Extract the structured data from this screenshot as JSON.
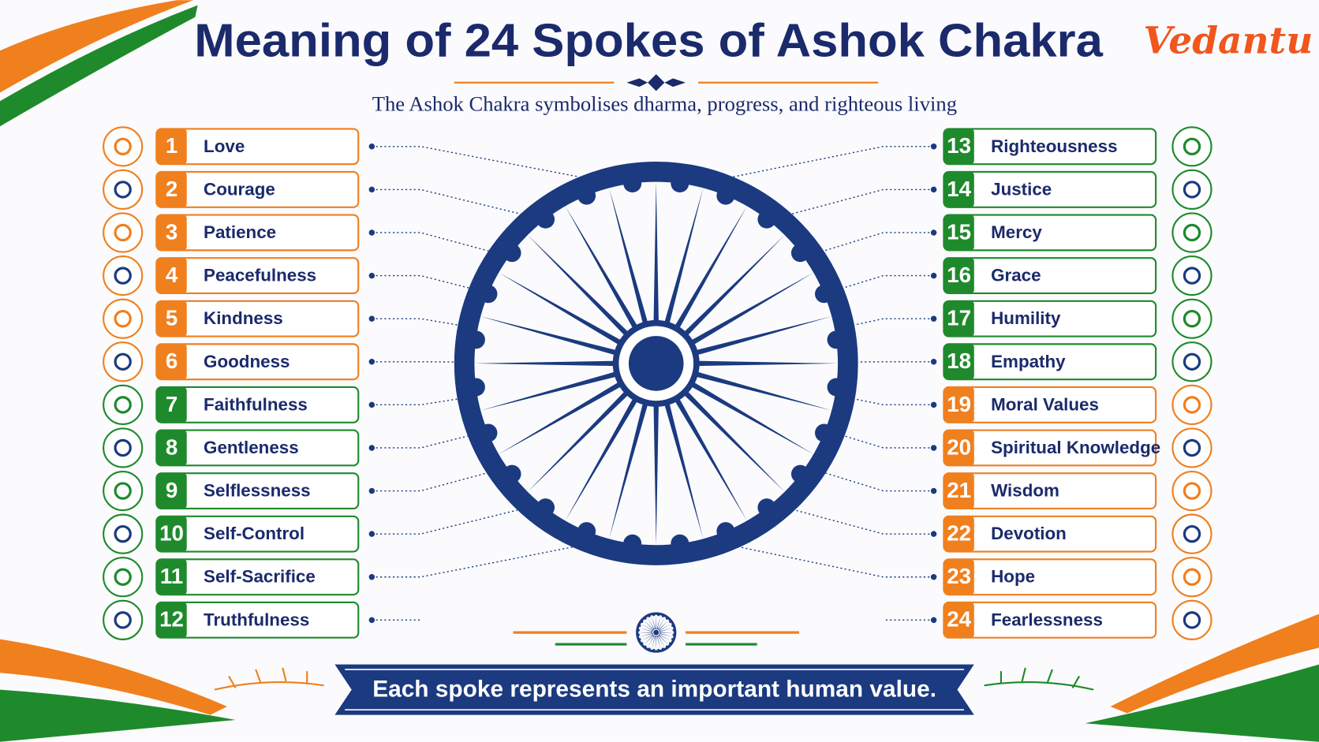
{
  "header": {
    "title": "Meaning of 24 Spokes of Ashok Chakra",
    "logo": "Vedantu",
    "subtitle": "The Ashok Chakra symbolises dharma, progress, and righteous living"
  },
  "items": [
    {
      "number": 1,
      "label": "Love",
      "color": "#f07f1e"
    },
    {
      "number": 2,
      "label": "Courage",
      "color": "#f07f1e"
    },
    {
      "number": 3,
      "label": "Patience",
      "color": "#f07f1e"
    },
    {
      "number": 4,
      "label": "Peacefulness",
      "color": "#f07f1e"
    },
    {
      "number": 5,
      "label": "Kindness",
      "color": "#f07f1e"
    },
    {
      "number": 6,
      "label": "Goodness",
      "color": "#f07f1e"
    },
    {
      "number": 7,
      "label": "Faithfulness",
      "color": "#1e8a2c"
    },
    {
      "number": 8,
      "label": "Gentleness",
      "color": "#1e8a2c"
    },
    {
      "number": 9,
      "label": "Selflessness",
      "color": "#1e8a2c"
    },
    {
      "number": 10,
      "label": "Self-Control",
      "color": "#1e8a2c"
    },
    {
      "number": 11,
      "label": "Self-Sacrifice",
      "color": "#1e8a2c"
    },
    {
      "number": 12,
      "label": "Truthfulness",
      "color": "#1e8a2c"
    },
    {
      "number": 13,
      "label": "Righteousness",
      "color": "#1e8a2c"
    },
    {
      "number": 14,
      "label": "Justice",
      "color": "#1e8a2c"
    },
    {
      "number": 15,
      "label": "Mercy",
      "color": "#1e8a2c"
    },
    {
      "number": 16,
      "label": "Grace",
      "color": "#1e8a2c"
    },
    {
      "number": 17,
      "label": "Humility",
      "color": "#1e8a2c"
    },
    {
      "number": 18,
      "label": "Empathy",
      "color": "#1e8a2c"
    },
    {
      "number": 19,
      "label": "Moral Values",
      "color": "#f07f1e"
    },
    {
      "number": 20,
      "label": "Spiritual Knowledge",
      "color": "#f07f1e"
    },
    {
      "number": 21,
      "label": "Wisdom",
      "color": "#f07f1e"
    },
    {
      "number": 22,
      "label": "Devotion",
      "color": "#f07f1e"
    },
    {
      "number": 23,
      "label": "Hope",
      "color": "#f07f1e"
    },
    {
      "number": 24,
      "label": "Fearlessness",
      "color": "#f07f1e"
    }
  ],
  "footer": "Each spoke represents an important human value."
}
